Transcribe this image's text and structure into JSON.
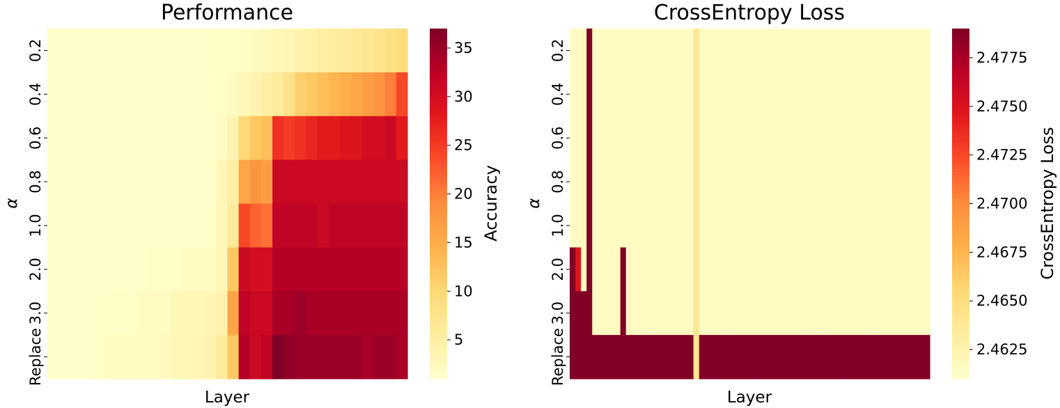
{
  "chart_data": [
    {
      "type": "heatmap",
      "title": "Performance",
      "xlabel": "Layer",
      "ylabel": "α",
      "y_categories": [
        "0.2",
        "0.4",
        "0.6",
        "0.8",
        "1.0",
        "2.0",
        "3.0",
        "Replace"
      ],
      "n_layers": 32,
      "colorbar": {
        "label": "Accuracy",
        "range": [
          1,
          37
        ],
        "ticks": [
          5,
          10,
          15,
          20,
          25,
          30,
          35
        ]
      },
      "values": [
        [
          1.2,
          1.2,
          1.2,
          1.2,
          1.2,
          1.2,
          1.2,
          1.2,
          1.2,
          1.2,
          1.2,
          1.2,
          1.2,
          1.2,
          1.2,
          1.3,
          1.3,
          1.5,
          2,
          2.5,
          3,
          3.5,
          4,
          4.5,
          5,
          5.5,
          6,
          6.5,
          7,
          7.5,
          8.5,
          9.5
        ],
        [
          1,
          1,
          1,
          1,
          1,
          1,
          1,
          1,
          1,
          1,
          1,
          1,
          1,
          1,
          1,
          1.5,
          2,
          3,
          4,
          5,
          6,
          8,
          11,
          12,
          13,
          14,
          15,
          16,
          17,
          18,
          20,
          24
        ],
        [
          1,
          1,
          1,
          1,
          1,
          1,
          1,
          1,
          1,
          1,
          1,
          1,
          1,
          1,
          1,
          2,
          4,
          10,
          12,
          13,
          26,
          25,
          26,
          27,
          28,
          28,
          29,
          29,
          30,
          30,
          31,
          28
        ],
        [
          1,
          1,
          1,
          1,
          1,
          1,
          1,
          1,
          1,
          1,
          1,
          1,
          1,
          1,
          1,
          3,
          5,
          16,
          18,
          17,
          31,
          31,
          31,
          31,
          31,
          31,
          31,
          31,
          31,
          31,
          31,
          31
        ],
        [
          1,
          1,
          1,
          1,
          1,
          1,
          1,
          1,
          1,
          1,
          1,
          1,
          1,
          1,
          1.5,
          3,
          6,
          24,
          22,
          21,
          32,
          32,
          32,
          32,
          31,
          32,
          32,
          32,
          32,
          32,
          32,
          32
        ],
        [
          1,
          1,
          1,
          1,
          1,
          1,
          1,
          1,
          1,
          1.5,
          1.5,
          1.5,
          2,
          2,
          2,
          3,
          12,
          31,
          30,
          30,
          33,
          33,
          33,
          33,
          33,
          33,
          33,
          33,
          33,
          33,
          33,
          33
        ],
        [
          1,
          1,
          1,
          1,
          1.5,
          1.5,
          1.5,
          1.5,
          2,
          2,
          2,
          3,
          3,
          3,
          3.5,
          4,
          16,
          32,
          31,
          31,
          34,
          34,
          35,
          34,
          34,
          34,
          34,
          34,
          34,
          34,
          34,
          34
        ],
        [
          1,
          1,
          1,
          1,
          1.5,
          2,
          2,
          2,
          2,
          2,
          2.5,
          3,
          3,
          3.5,
          4,
          6,
          12,
          33,
          31,
          32,
          37,
          36,
          35,
          35,
          35,
          35,
          35,
          35,
          34,
          35,
          35,
          34
        ]
      ]
    },
    {
      "type": "heatmap",
      "title": "CrossEntropy Loss",
      "xlabel": "Layer",
      "ylabel": "α",
      "y_categories": [
        "0.2",
        "0.4",
        "0.6",
        "0.8",
        "1.0",
        "2.0",
        "3.0",
        "Replace"
      ],
      "n_layers": 64,
      "colorbar": {
        "label": "CrossEntropy Loss",
        "range": [
          2.461,
          2.479
        ],
        "ticks": [
          2.4625,
          2.465,
          2.4675,
          2.47,
          2.4725,
          2.475,
          2.4775
        ]
      },
      "values": [
        [
          2.4615,
          2.4615,
          2.4615,
          2.479,
          2.4615,
          2.4615,
          2.4615,
          2.4615,
          2.4615,
          2.4615,
          2.4615,
          2.4615,
          2.4615,
          2.4615,
          2.4615,
          2.4615,
          2.4615,
          2.4615,
          2.4615,
          2.4615,
          2.4615,
          2.4615,
          2.464,
          2.4615,
          2.4615,
          2.4615,
          2.4615,
          2.4615,
          2.4615,
          2.4615,
          2.4615,
          2.4615,
          2.4615,
          2.4615,
          2.4615,
          2.4615,
          2.4615,
          2.4615,
          2.4615,
          2.4615,
          2.4615,
          2.4615,
          2.4615,
          2.4615,
          2.4615,
          2.4615,
          2.4615,
          2.4615,
          2.4615,
          2.4615,
          2.4615,
          2.4615,
          2.4615,
          2.4615,
          2.4615,
          2.4615,
          2.4615,
          2.4615,
          2.4615,
          2.4615,
          2.4615,
          2.4615,
          2.4615,
          2.4615
        ],
        [
          2.4615,
          2.4615,
          2.4615,
          2.479,
          2.4615,
          2.4615,
          2.4615,
          2.4615,
          2.4615,
          2.4615,
          2.4615,
          2.4615,
          2.4615,
          2.4615,
          2.4615,
          2.4615,
          2.4615,
          2.4615,
          2.4615,
          2.4615,
          2.4615,
          2.4615,
          2.464,
          2.4615,
          2.4615,
          2.4615,
          2.4615,
          2.4615,
          2.4615,
          2.4615,
          2.4615,
          2.4615,
          2.4615,
          2.4615,
          2.4615,
          2.4615,
          2.4615,
          2.4615,
          2.4615,
          2.4615,
          2.4615,
          2.4615,
          2.4615,
          2.4615,
          2.4615,
          2.4615,
          2.4615,
          2.4615,
          2.4615,
          2.4615,
          2.4615,
          2.4615,
          2.4615,
          2.4615,
          2.4615,
          2.4615,
          2.4615,
          2.4615,
          2.4615,
          2.4615,
          2.4615,
          2.4615,
          2.4615,
          2.4615
        ],
        [
          2.4615,
          2.4615,
          2.4615,
          2.479,
          2.4615,
          2.4615,
          2.4615,
          2.4615,
          2.4615,
          2.4615,
          2.4615,
          2.4615,
          2.4615,
          2.4615,
          2.4615,
          2.4615,
          2.4615,
          2.4615,
          2.4615,
          2.4615,
          2.4615,
          2.4615,
          2.464,
          2.4615,
          2.4615,
          2.4615,
          2.4615,
          2.4615,
          2.4615,
          2.4615,
          2.4615,
          2.4615,
          2.4615,
          2.4615,
          2.4615,
          2.4615,
          2.4615,
          2.4615,
          2.4615,
          2.4615,
          2.4615,
          2.4615,
          2.4615,
          2.4615,
          2.4615,
          2.4615,
          2.4615,
          2.4615,
          2.4615,
          2.4615,
          2.4615,
          2.4615,
          2.4615,
          2.4615,
          2.4615,
          2.4615,
          2.4615,
          2.4615,
          2.4615,
          2.4615,
          2.4615,
          2.4615,
          2.4615,
          2.4615
        ],
        [
          2.4615,
          2.4615,
          2.4615,
          2.479,
          2.4615,
          2.4615,
          2.4615,
          2.4615,
          2.4615,
          2.4615,
          2.4615,
          2.4615,
          2.4615,
          2.4615,
          2.4615,
          2.4615,
          2.4615,
          2.4615,
          2.4615,
          2.4615,
          2.4615,
          2.4615,
          2.464,
          2.4615,
          2.4615,
          2.4615,
          2.4615,
          2.4615,
          2.4615,
          2.4615,
          2.4615,
          2.4615,
          2.4615,
          2.4615,
          2.4615,
          2.4615,
          2.4615,
          2.4615,
          2.4615,
          2.4615,
          2.4615,
          2.4615,
          2.4615,
          2.4615,
          2.4615,
          2.4615,
          2.4615,
          2.4615,
          2.4615,
          2.4615,
          2.4615,
          2.4615,
          2.4615,
          2.4615,
          2.4615,
          2.4615,
          2.4615,
          2.4615,
          2.4615,
          2.4615,
          2.4615,
          2.4615,
          2.4615,
          2.4615
        ],
        [
          2.4615,
          2.4615,
          2.4615,
          2.479,
          2.4615,
          2.4615,
          2.4615,
          2.4615,
          2.4615,
          2.4615,
          2.4615,
          2.4615,
          2.4615,
          2.4615,
          2.4615,
          2.4615,
          2.4615,
          2.4615,
          2.4615,
          2.4615,
          2.4615,
          2.4615,
          2.464,
          2.4615,
          2.4615,
          2.4615,
          2.4615,
          2.4615,
          2.4615,
          2.4615,
          2.4615,
          2.4615,
          2.4615,
          2.4615,
          2.4615,
          2.4615,
          2.4615,
          2.4615,
          2.4615,
          2.4615,
          2.4615,
          2.4615,
          2.4615,
          2.4615,
          2.4615,
          2.4615,
          2.4615,
          2.4615,
          2.4615,
          2.4615,
          2.4615,
          2.4615,
          2.4615,
          2.4615,
          2.4615,
          2.4615,
          2.4615,
          2.4615,
          2.4615,
          2.4615,
          2.4615,
          2.4615,
          2.4615,
          2.4615
        ],
        [
          2.479,
          2.475,
          2.4615,
          2.479,
          2.4615,
          2.4615,
          2.4615,
          2.4615,
          2.4615,
          2.479,
          2.4615,
          2.4615,
          2.4615,
          2.4615,
          2.4615,
          2.4615,
          2.4615,
          2.4615,
          2.4615,
          2.4615,
          2.4615,
          2.4615,
          2.464,
          2.4615,
          2.4615,
          2.4615,
          2.4615,
          2.4615,
          2.4615,
          2.4615,
          2.4615,
          2.4615,
          2.4615,
          2.4615,
          2.4615,
          2.4615,
          2.4615,
          2.4615,
          2.4615,
          2.4615,
          2.4615,
          2.4615,
          2.4615,
          2.4615,
          2.4615,
          2.4615,
          2.4615,
          2.4615,
          2.4615,
          2.4615,
          2.4615,
          2.4615,
          2.4615,
          2.4615,
          2.4615,
          2.4615,
          2.4615,
          2.4615,
          2.4615,
          2.4615,
          2.4615,
          2.4615,
          2.4615,
          2.4615
        ],
        [
          2.479,
          2.479,
          2.479,
          2.479,
          2.4615,
          2.4615,
          2.4615,
          2.4615,
          2.4615,
          2.479,
          2.4615,
          2.4615,
          2.4615,
          2.4615,
          2.4615,
          2.4615,
          2.4615,
          2.4615,
          2.4615,
          2.4615,
          2.4615,
          2.4615,
          2.464,
          2.4615,
          2.4615,
          2.4615,
          2.4615,
          2.4615,
          2.4615,
          2.4615,
          2.4615,
          2.4615,
          2.4615,
          2.4615,
          2.4615,
          2.4615,
          2.4615,
          2.4615,
          2.4615,
          2.4615,
          2.4615,
          2.4615,
          2.4615,
          2.4615,
          2.4615,
          2.4615,
          2.4615,
          2.4615,
          2.4615,
          2.4615,
          2.4615,
          2.4615,
          2.4615,
          2.4615,
          2.4615,
          2.4615,
          2.4615,
          2.4615,
          2.4615,
          2.4615,
          2.4615,
          2.4615,
          2.4615,
          2.4615
        ],
        [
          2.479,
          2.479,
          2.479,
          2.479,
          2.479,
          2.479,
          2.479,
          2.479,
          2.479,
          2.479,
          2.479,
          2.479,
          2.479,
          2.479,
          2.479,
          2.479,
          2.479,
          2.479,
          2.479,
          2.479,
          2.479,
          2.479,
          2.464,
          2.479,
          2.479,
          2.479,
          2.479,
          2.479,
          2.479,
          2.479,
          2.479,
          2.479,
          2.479,
          2.479,
          2.479,
          2.479,
          2.479,
          2.479,
          2.479,
          2.479,
          2.479,
          2.479,
          2.479,
          2.479,
          2.479,
          2.479,
          2.479,
          2.479,
          2.479,
          2.479,
          2.479,
          2.479,
          2.479,
          2.479,
          2.479,
          2.479,
          2.479,
          2.479,
          2.479,
          2.479,
          2.479,
          2.479,
          2.479,
          2.479
        ]
      ]
    }
  ]
}
